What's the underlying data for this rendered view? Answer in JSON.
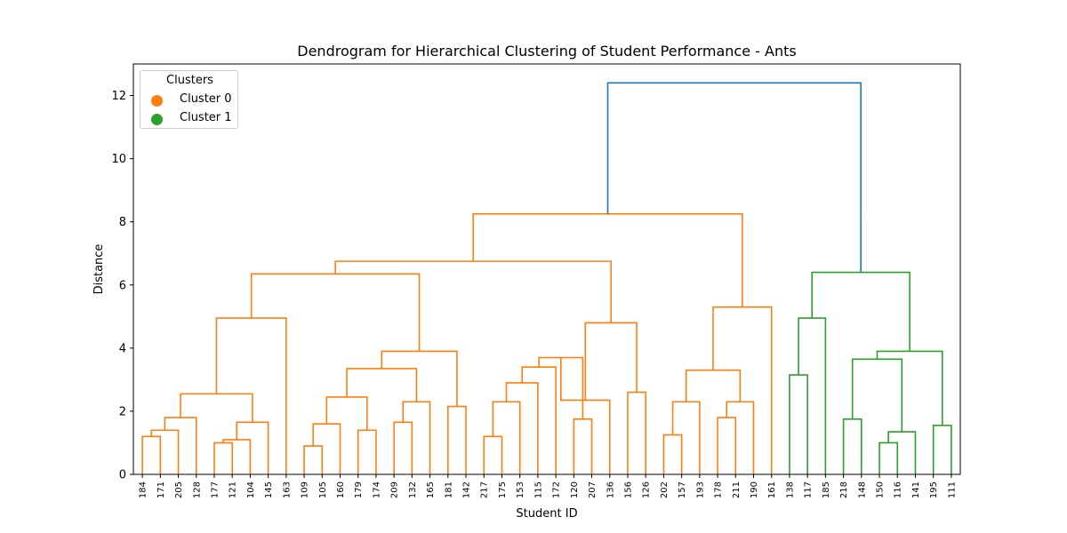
{
  "chart_data": {
    "type": "dendrogram",
    "title": "Dendrogram for Hierarchical Clustering of Student Performance - Ants",
    "xlabel": "Student ID",
    "ylabel": "Distance",
    "ylim": [
      0,
      13
    ],
    "yticks": [
      0,
      2,
      4,
      6,
      8,
      10,
      12
    ],
    "grid": false,
    "legend_position": "top-left",
    "legend": {
      "title": "Clusters",
      "entries": [
        {
          "name": "Cluster 0",
          "color": "#ff7f0e"
        },
        {
          "name": "Cluster 1",
          "color": "#2ca02c"
        }
      ]
    },
    "link_color_above": "#1f77b4",
    "leaves": [
      "184",
      "171",
      "205",
      "128",
      "177",
      "121",
      "104",
      "145",
      "163",
      "109",
      "105",
      "160",
      "179",
      "174",
      "209",
      "132",
      "165",
      "181",
      "142",
      "217",
      "175",
      "153",
      "115",
      "172",
      "120",
      "207",
      "136",
      "156",
      "126",
      "202",
      "157",
      "193",
      "178",
      "211",
      "190",
      "161",
      "138",
      "117",
      "185",
      "218",
      "148",
      "150",
      "116",
      "141",
      "195",
      "111"
    ],
    "merges": [
      {
        "a": "L0",
        "b": "L1",
        "h": 1.2,
        "c": "#ff7f0e"
      },
      {
        "a": "M0",
        "b": "L2",
        "h": 1.4,
        "c": "#ff7f0e"
      },
      {
        "a": "M1",
        "b": "L3",
        "h": 1.8,
        "c": "#ff7f0e"
      },
      {
        "a": "L4",
        "b": "L5",
        "h": 1.0,
        "c": "#ff7f0e"
      },
      {
        "a": "M3",
        "b": "L6",
        "h": 1.1,
        "c": "#ff7f0e"
      },
      {
        "a": "M4",
        "b": "L7",
        "h": 1.65,
        "c": "#ff7f0e"
      },
      {
        "a": "M2",
        "b": "M5",
        "h": 2.55,
        "c": "#ff7f0e"
      },
      {
        "a": "M6",
        "b": "L8",
        "h": 4.95,
        "c": "#ff7f0e"
      },
      {
        "a": "L9",
        "b": "L10",
        "h": 0.9,
        "c": "#ff7f0e"
      },
      {
        "a": "M8",
        "b": "L11",
        "h": 1.6,
        "c": "#ff7f0e"
      },
      {
        "a": "L12",
        "b": "L13",
        "h": 1.4,
        "c": "#ff7f0e"
      },
      {
        "a": "M9",
        "b": "M10",
        "h": 2.45,
        "c": "#ff7f0e"
      },
      {
        "a": "L14",
        "b": "L15",
        "h": 1.65,
        "c": "#ff7f0e"
      },
      {
        "a": "M12",
        "b": "L16",
        "h": 2.3,
        "c": "#ff7f0e"
      },
      {
        "a": "M11",
        "b": "M13",
        "h": 3.35,
        "c": "#ff7f0e"
      },
      {
        "a": "L17",
        "b": "L18",
        "h": 2.15,
        "c": "#ff7f0e"
      },
      {
        "a": "M14",
        "b": "M15",
        "h": 3.9,
        "c": "#ff7f0e"
      },
      {
        "a": "M7",
        "b": "M16",
        "h": 6.35,
        "c": "#ff7f0e"
      },
      {
        "a": "L19",
        "b": "L20",
        "h": 1.2,
        "c": "#ff7f0e"
      },
      {
        "a": "M18",
        "b": "L21",
        "h": 2.3,
        "c": "#ff7f0e"
      },
      {
        "a": "M19",
        "b": "L22",
        "h": 2.9,
        "c": "#ff7f0e"
      },
      {
        "a": "M20",
        "b": "L23",
        "h": 3.4,
        "c": "#ff7f0e"
      },
      {
        "a": "L24",
        "b": "L25",
        "h": 1.75,
        "c": "#ff7f0e"
      },
      {
        "a": "M21",
        "b": "M22",
        "h": 3.7,
        "c": "#ff7f0e"
      },
      {
        "a": "M23",
        "b": "L26",
        "h": 2.35,
        "c": "#ff7f0e"
      },
      {
        "a": "L27",
        "b": "L28",
        "h": 2.6,
        "c": "#ff7f0e"
      },
      {
        "a": "M24",
        "b": "M25",
        "h": 4.8,
        "c": "#ff7f0e"
      },
      {
        "a": "M17",
        "b": "M26",
        "h": 6.75,
        "c": "#ff7f0e"
      },
      {
        "a": "L29",
        "b": "L30",
        "h": 1.25,
        "c": "#ff7f0e"
      },
      {
        "a": "M28",
        "b": "L31",
        "h": 2.3,
        "c": "#ff7f0e"
      },
      {
        "a": "L32",
        "b": "L33",
        "h": 1.8,
        "c": "#ff7f0e"
      },
      {
        "a": "M30",
        "b": "L34",
        "h": 2.3,
        "c": "#ff7f0e"
      },
      {
        "a": "M29",
        "b": "M31",
        "h": 3.3,
        "c": "#ff7f0e"
      },
      {
        "a": "M32",
        "b": "L35",
        "h": 5.3,
        "c": "#ff7f0e"
      },
      {
        "a": "M27",
        "b": "M33",
        "h": 8.25,
        "c": "#ff7f0e"
      },
      {
        "a": "L36",
        "b": "L37",
        "h": 3.15,
        "c": "#2ca02c"
      },
      {
        "a": "M35",
        "b": "L38",
        "h": 4.95,
        "c": "#2ca02c"
      },
      {
        "a": "L39",
        "b": "L40",
        "h": 1.75,
        "c": "#2ca02c"
      },
      {
        "a": "L41",
        "b": "L42",
        "h": 1.0,
        "c": "#2ca02c"
      },
      {
        "a": "M38",
        "b": "L43",
        "h": 1.35,
        "c": "#2ca02c"
      },
      {
        "a": "M37",
        "b": "M39",
        "h": 3.65,
        "c": "#2ca02c"
      },
      {
        "a": "L44",
        "b": "L45",
        "h": 1.55,
        "c": "#2ca02c"
      },
      {
        "a": "M40",
        "b": "M41",
        "h": 3.9,
        "c": "#2ca02c"
      },
      {
        "a": "M36",
        "b": "M42",
        "h": 6.4,
        "c": "#2ca02c"
      },
      {
        "a": "M34",
        "b": "M43",
        "h": 12.4,
        "c": "#1f77b4"
      }
    ]
  }
}
